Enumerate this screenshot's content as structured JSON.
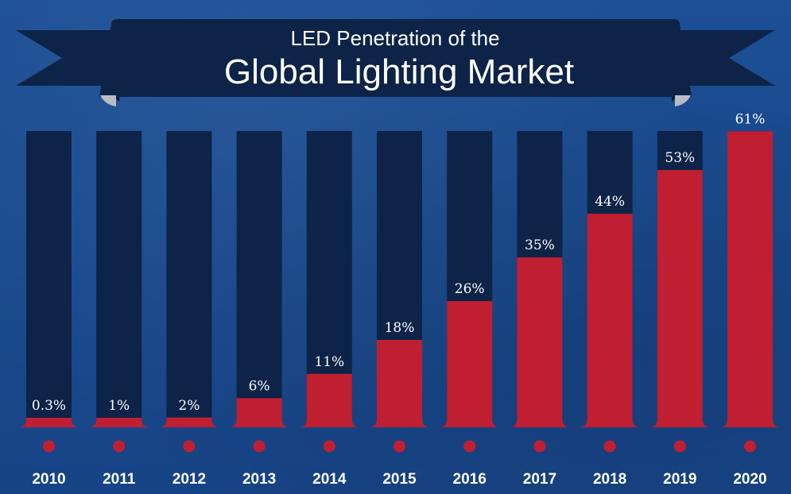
{
  "banner": {
    "title_line1": "LED Penetration of the",
    "title_line2": "Global Lighting Market"
  },
  "colors": {
    "background": "#1a4a8f",
    "column": "#0d2347",
    "bar": "#c01f32",
    "banner": "#0d2347",
    "banner_fold": "#071530",
    "banner_tip": "#b8bcc4",
    "dot": "#c01f32",
    "text": "#ffffff"
  },
  "chart_data": {
    "type": "bar",
    "title": "LED Penetration of the Global Lighting Market",
    "categories": [
      "2010",
      "2011",
      "2012",
      "2013",
      "2014",
      "2015",
      "2016",
      "2017",
      "2018",
      "2019",
      "2020"
    ],
    "values": [
      0.3,
      1,
      2,
      6,
      11,
      18,
      26,
      35,
      44,
      53,
      61
    ],
    "data_labels": [
      "0.3%",
      "1%",
      "2%",
      "6%",
      "11%",
      "18%",
      "26%",
      "35%",
      "44%",
      "53%",
      "61%"
    ],
    "unit": "%",
    "ylim": [
      0,
      100
    ],
    "grid": false,
    "legend": "none"
  }
}
